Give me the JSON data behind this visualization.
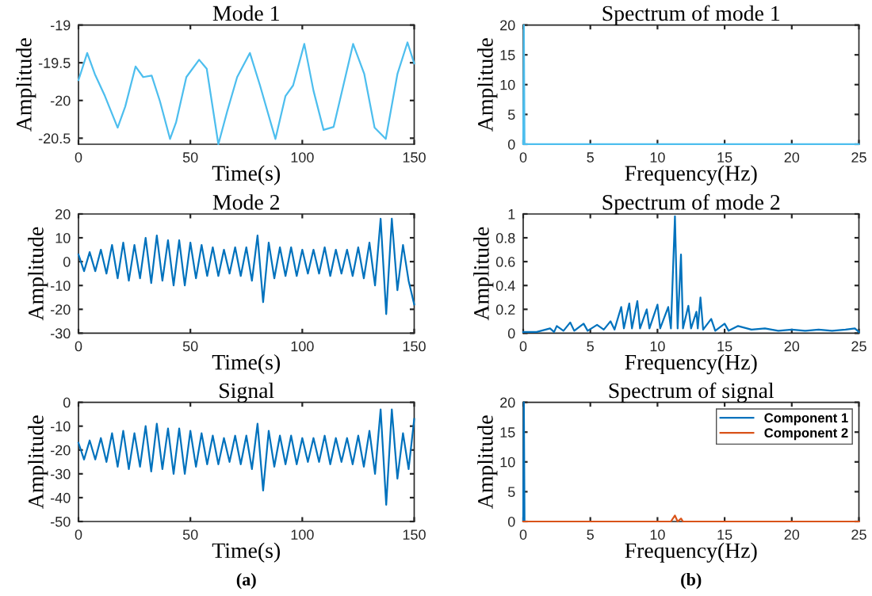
{
  "chart_data": [
    {
      "type": "line",
      "title": "Mode 1",
      "xlabel": "Time(s)",
      "ylabel": "Amplitude",
      "xlim": [
        0,
        150
      ],
      "xticks": [
        0,
        50,
        100,
        150
      ],
      "ylim": [
        -20.58,
        -19
      ],
      "yticks": [
        -20.5,
        -20,
        -19.5,
        -19
      ],
      "series": [
        {
          "color": "#4dbeee",
          "x": [
            0,
            3.9,
            7.3,
            11.8,
            17.5,
            20.9,
            25.5,
            28.9,
            32.7,
            36.4,
            40.9,
            43.6,
            48.2,
            53.9,
            57.3,
            62.5,
            66.4,
            70.9,
            76.6,
            81.1,
            88,
            92.5,
            95.9,
            100.9,
            105,
            109.5,
            114,
            122.7,
            127.7,
            132.3,
            137.3,
            142.5,
            147,
            150
          ],
          "values": [
            -19.73,
            -19.37,
            -19.65,
            -19.94,
            -20.36,
            -20.08,
            -19.55,
            -19.69,
            -19.67,
            -20.01,
            -20.51,
            -20.29,
            -19.69,
            -19.46,
            -19.58,
            -20.58,
            -20.15,
            -19.69,
            -19.37,
            -19.8,
            -20.51,
            -19.94,
            -19.8,
            -19.25,
            -19.87,
            -20.39,
            -20.35,
            -19.25,
            -19.65,
            -20.36,
            -20.51,
            -19.65,
            -19.23,
            -19.51
          ]
        }
      ]
    },
    {
      "type": "line",
      "title": "Spectrum of mode 1",
      "xlabel": "Frequency(Hz)",
      "ylabel": "Amplitude",
      "xlim": [
        0,
        25
      ],
      "xticks": [
        0,
        5,
        10,
        15,
        20,
        25
      ],
      "ylim": [
        0,
        20
      ],
      "yticks": [
        0,
        5,
        10,
        15,
        20
      ],
      "series": [
        {
          "color": "#4dbeee",
          "x": [
            0,
            0.05,
            0.1,
            25
          ],
          "values": [
            0,
            20,
            0,
            0
          ]
        }
      ]
    },
    {
      "type": "line",
      "title": "Mode 2",
      "xlabel": "Time(s)",
      "ylabel": "Amplitude",
      "xlim": [
        0,
        150
      ],
      "xticks": [
        0,
        50,
        100,
        150
      ],
      "ylim": [
        -30,
        20
      ],
      "yticks": [
        -30,
        -20,
        -10,
        0,
        10,
        20
      ],
      "series": [
        {
          "color": "#0072bd",
          "x": [
            0,
            2.5,
            5,
            7.5,
            10,
            12.5,
            15,
            17.5,
            20,
            22.5,
            25,
            27.5,
            30,
            32.5,
            35,
            37.5,
            40,
            42.5,
            45,
            47.5,
            50,
            52.5,
            55,
            57.5,
            60,
            62.5,
            65,
            67.5,
            70,
            72.5,
            75,
            77.5,
            80,
            82.5,
            85,
            87.5,
            90,
            92.5,
            95,
            97.5,
            100,
            102.5,
            105,
            107.5,
            110,
            112.5,
            115,
            117.5,
            120,
            122.5,
            125,
            127.5,
            130,
            132.5,
            135,
            137.5,
            140,
            142.5,
            145,
            147.5,
            150
          ],
          "values": [
            3,
            -4,
            4,
            -4,
            5,
            -5,
            7,
            -7,
            8,
            -8,
            7,
            -7,
            10,
            -9,
            11,
            -8,
            9,
            -10,
            9,
            -10,
            8,
            -7,
            7,
            -6,
            6,
            -6,
            5,
            -5,
            6,
            -6,
            6,
            -8,
            11,
            -17,
            8,
            -7,
            6,
            -6,
            6,
            -6,
            5,
            -5,
            5,
            -5,
            6,
            -6,
            5,
            -5,
            5,
            -6,
            6,
            -7,
            8,
            -10,
            18,
            -22,
            18,
            -12,
            7,
            -8,
            -18
          ]
        }
      ]
    },
    {
      "type": "line",
      "title": "Spectrum of mode 2",
      "xlabel": "Frequency(Hz)",
      "ylabel": "Amplitude",
      "xlim": [
        0,
        25
      ],
      "xticks": [
        0,
        5,
        10,
        15,
        20,
        25
      ],
      "ylim": [
        0,
        1
      ],
      "yticks": [
        0,
        0.2,
        0.4,
        0.6,
        0.8,
        1
      ],
      "series": [
        {
          "color": "#0072bd",
          "x": [
            0,
            1,
            2,
            2.3,
            2.5,
            3,
            3.5,
            3.8,
            4.5,
            4.8,
            5.5,
            6,
            6.5,
            6.8,
            7.3,
            7.5,
            7.9,
            8.1,
            8.5,
            8.7,
            9.2,
            9.4,
            10,
            10.2,
            10.8,
            11,
            11.3,
            11.5,
            11.75,
            11.9,
            12.3,
            12.5,
            12.9,
            13,
            13.2,
            13.4,
            14,
            14.3,
            15,
            15.3,
            16,
            17,
            18,
            19,
            20,
            21,
            22,
            23,
            24,
            24.7,
            25
          ],
          "values": [
            0.01,
            0.01,
            0.04,
            0.01,
            0.06,
            0.02,
            0.09,
            0.02,
            0.08,
            0.02,
            0.07,
            0.03,
            0.1,
            0.03,
            0.22,
            0.04,
            0.25,
            0.04,
            0.27,
            0.04,
            0.2,
            0.04,
            0.24,
            0.04,
            0.22,
            0.04,
            0.98,
            0.04,
            0.66,
            0.04,
            0.23,
            0.04,
            0.18,
            0.04,
            0.3,
            0.03,
            0.12,
            0.02,
            0.08,
            0.02,
            0.06,
            0.03,
            0.04,
            0.02,
            0.03,
            0.02,
            0.03,
            0.02,
            0.03,
            0.04,
            0.01
          ]
        }
      ]
    },
    {
      "type": "line",
      "title": "Signal",
      "xlabel": "Time(s)",
      "ylabel": "Amplitude",
      "xlim": [
        0,
        150
      ],
      "xticks": [
        0,
        50,
        100,
        150
      ],
      "ylim": [
        -50,
        0
      ],
      "yticks": [
        -50,
        -40,
        -30,
        -20,
        -10,
        0
      ],
      "annotations": [
        "(a)"
      ],
      "series": [
        {
          "color": "#0072bd",
          "x": [
            0,
            2.5,
            5,
            7.5,
            10,
            12.5,
            15,
            17.5,
            20,
            22.5,
            25,
            27.5,
            30,
            32.5,
            35,
            37.5,
            40,
            42.5,
            45,
            47.5,
            50,
            52.5,
            55,
            57.5,
            60,
            62.5,
            65,
            67.5,
            70,
            72.5,
            75,
            77.5,
            80,
            82.5,
            85,
            87.5,
            90,
            92.5,
            95,
            97.5,
            100,
            102.5,
            105,
            107.5,
            110,
            112.5,
            115,
            117.5,
            120,
            122.5,
            125,
            127.5,
            130,
            132.5,
            135,
            137.5,
            140,
            142.5,
            145,
            147.5,
            150
          ],
          "values": [
            -17,
            -24,
            -16,
            -24,
            -15,
            -25,
            -13,
            -27,
            -12,
            -28,
            -13,
            -27,
            -10,
            -29,
            -9,
            -28,
            -11,
            -30,
            -11,
            -30,
            -12,
            -27,
            -13,
            -26,
            -14,
            -26,
            -15,
            -25,
            -14,
            -26,
            -14,
            -28,
            -9,
            -37,
            -12,
            -27,
            -14,
            -26,
            -14,
            -26,
            -15,
            -25,
            -15,
            -25,
            -14,
            -26,
            -15,
            -25,
            -15,
            -26,
            -14,
            -27,
            -12,
            -30,
            -3,
            -43,
            -3,
            -32,
            -13,
            -28,
            -7
          ]
        }
      ]
    },
    {
      "type": "line",
      "title": "Spectrum of signal",
      "xlabel": "Frequency(Hz)",
      "ylabel": "Amplitude",
      "xlim": [
        0,
        25
      ],
      "xticks": [
        0,
        5,
        10,
        15,
        20,
        25
      ],
      "ylim": [
        0,
        20
      ],
      "yticks": [
        0,
        5,
        10,
        15,
        20
      ],
      "legend": "top right",
      "annotations": [
        "(b)"
      ],
      "series": [
        {
          "name": "Component 1",
          "color": "#0072bd",
          "x": [
            0,
            0.05,
            0.1
          ],
          "values": [
            0,
            20,
            0
          ]
        },
        {
          "name": "Component 2",
          "color": "#d95319",
          "x": [
            0,
            11,
            11.3,
            11.5,
            11.75,
            11.9,
            25
          ],
          "values": [
            0,
            0,
            1,
            0,
            0.5,
            0,
            0
          ]
        }
      ]
    }
  ]
}
